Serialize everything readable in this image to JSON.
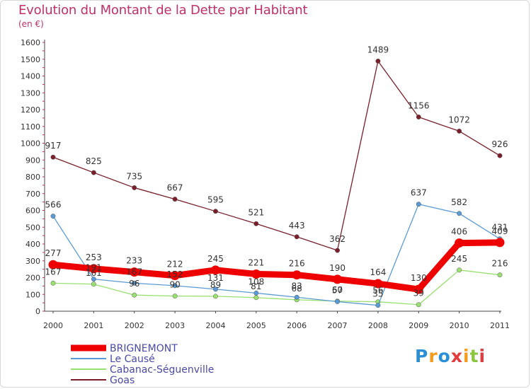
{
  "title": "Evolution du Montant de la Dette par Habitant",
  "unit": "(en €)",
  "logo": {
    "text": "Proxiti",
    "letters": [
      "P",
      "r",
      "o",
      "x",
      "i",
      "t",
      "i"
    ],
    "colors": [
      "#2a8fd6",
      "#f29b1d",
      "#2a8fd6",
      "#e33b3b",
      "#f29b1d",
      "#8cc63f",
      "#e33b3b"
    ]
  },
  "chart_data": {
    "type": "line",
    "x": [
      "2000",
      "2001",
      "2002",
      "2003",
      "2004",
      "2005",
      "2006",
      "2007",
      "2008",
      "2009",
      "2010",
      "2011"
    ],
    "ylim": [
      0,
      1600
    ],
    "yticks": [
      0,
      100,
      200,
      300,
      400,
      500,
      600,
      700,
      800,
      900,
      1000,
      1100,
      1200,
      1300,
      1400,
      1500,
      1600
    ],
    "grid": false,
    "legend": "bottom-left",
    "series": [
      {
        "name": "BRIGNEMONT",
        "color": "#ee0000",
        "values": [
          277,
          253,
          233,
          212,
          245,
          221,
          216,
          190,
          164,
          130,
          406,
          409
        ]
      },
      {
        "name": "Le Causé",
        "color": "#5b9bd5",
        "values": [
          566,
          191,
          167,
          152,
          131,
          108,
          83,
          57,
          35,
          637,
          582,
          431
        ]
      },
      {
        "name": "Cabanac-Séguenville",
        "color": "#99e070",
        "values": [
          167,
          161,
          96,
          90,
          89,
          81,
          68,
          60,
          56,
          39,
          245,
          216
        ]
      },
      {
        "name": "Goas",
        "color": "#7a1f2a",
        "values": [
          917,
          825,
          735,
          667,
          595,
          521,
          443,
          362,
          1489,
          1156,
          1072,
          926
        ]
      }
    ]
  }
}
